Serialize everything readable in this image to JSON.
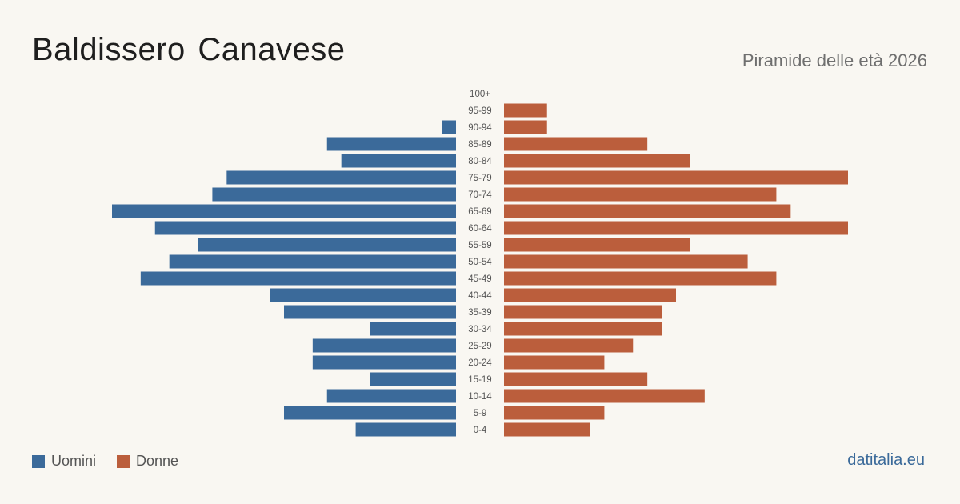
{
  "title": "Baldissero Canavese",
  "subtitle": "Piramide delle età 2026",
  "brand": "datitalia.eu",
  "colors": {
    "men": "#3b6a9a",
    "women": "#bb5e3c",
    "brand": "#3b6a9a"
  },
  "legend": {
    "men": "Uomini",
    "women": "Donne"
  },
  "chart_data": {
    "type": "bar",
    "orientation": "horizontal-pyramid",
    "categories": [
      "100+",
      "95-99",
      "90-94",
      "85-89",
      "80-84",
      "75-79",
      "70-74",
      "65-69",
      "60-64",
      "55-59",
      "50-54",
      "45-49",
      "40-44",
      "35-39",
      "30-34",
      "25-29",
      "20-24",
      "15-19",
      "10-14",
      "5-9",
      "0-4"
    ],
    "series": [
      {
        "name": "Uomini",
        "values": [
          0,
          0,
          1,
          9,
          8,
          16,
          17,
          24,
          21,
          18,
          20,
          22,
          13,
          12,
          6,
          10,
          10,
          6,
          9,
          12,
          7
        ]
      },
      {
        "name": "Donne",
        "values": [
          0,
          3,
          3,
          10,
          13,
          24,
          19,
          20,
          24,
          13,
          17,
          19,
          12,
          11,
          11,
          9,
          7,
          10,
          14,
          7,
          6
        ]
      }
    ]
  }
}
